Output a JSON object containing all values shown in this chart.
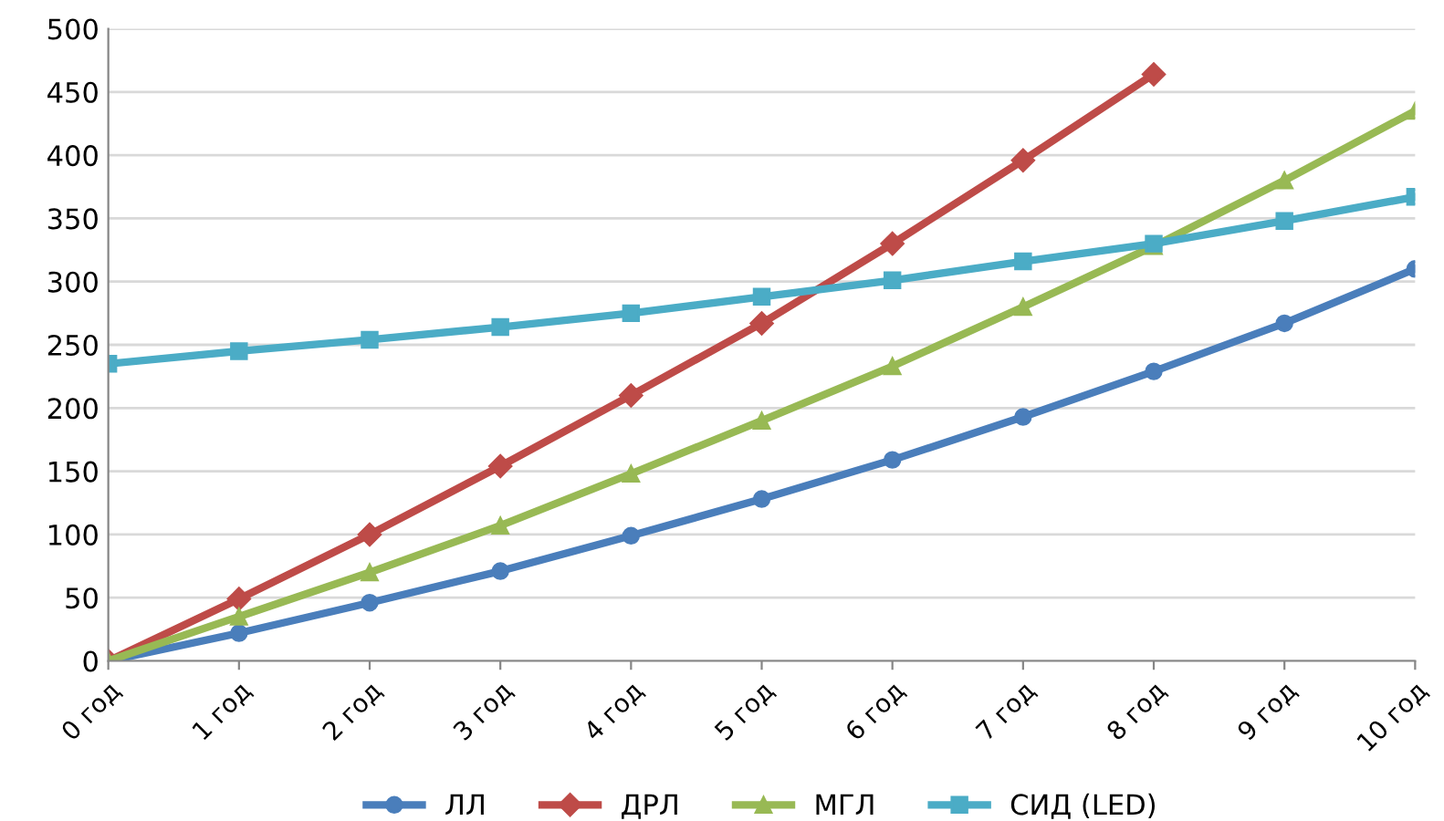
{
  "chart_data": {
    "type": "line",
    "categories": [
      "0 год",
      "1 год",
      "2 год",
      "3 год",
      "4 год",
      "5 год",
      "6 год",
      "7 год",
      "8 год",
      "9 год",
      "10 год"
    ],
    "series": [
      {
        "name": "ЛЛ",
        "color": "#4a7ebb",
        "marker": "circle",
        "values": [
          0,
          22,
          46,
          71,
          99,
          128,
          159,
          193,
          229,
          267,
          310
        ]
      },
      {
        "name": "ДРЛ",
        "color": "#be4b48",
        "marker": "diamond",
        "values": [
          0,
          49,
          100,
          154,
          210,
          267,
          330,
          396,
          464,
          null,
          null
        ]
      },
      {
        "name": "МГЛ",
        "color": "#98b954",
        "marker": "triangle",
        "values": [
          0,
          35,
          70,
          107,
          148,
          190,
          233,
          280,
          328,
          380,
          435
        ]
      },
      {
        "name": "СИД (LED)",
        "color": "#4bacc6",
        "marker": "square",
        "values": [
          235,
          245,
          254,
          264,
          275,
          288,
          301,
          316,
          330,
          348,
          367
        ]
      }
    ],
    "ylim": [
      0,
      500
    ],
    "yticks": [
      0,
      50,
      100,
      150,
      200,
      250,
      300,
      350,
      400,
      450,
      500
    ],
    "grid": "y",
    "legend": "bottom",
    "line_style": "solid"
  }
}
